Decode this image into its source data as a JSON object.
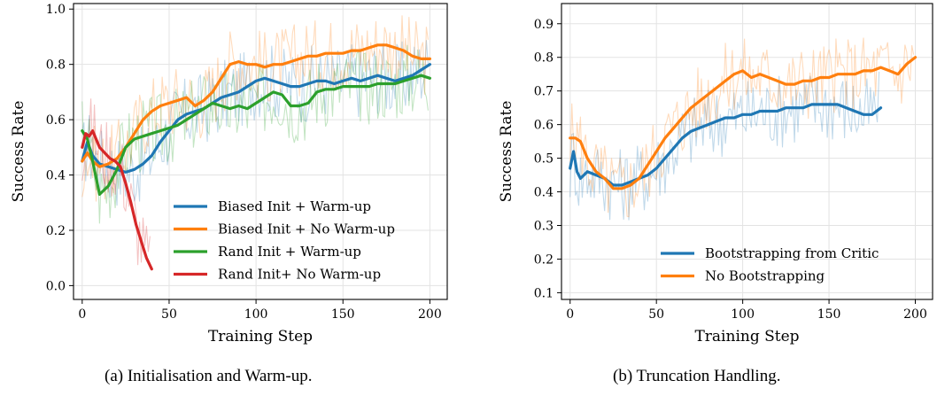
{
  "chart_data": [
    {
      "type": "line",
      "caption": "(a) Initialisation and Warm-up.",
      "xlabel": "Training Step",
      "ylabel": "Success Rate",
      "xlim": [
        -5,
        210
      ],
      "ylim": [
        -0.05,
        1.02
      ],
      "xticks": [
        "0",
        "50",
        "100",
        "150",
        "200"
      ],
      "yticks": [
        "0.0",
        "0.2",
        "0.4",
        "0.6",
        "0.8",
        "1.0"
      ],
      "grid": true,
      "legend_position": "lower-right",
      "series": [
        {
          "name": "Biased Init + Warm-up",
          "color": "#1f77b4",
          "x": [
            0,
            3,
            6,
            10,
            15,
            20,
            25,
            30,
            35,
            40,
            45,
            50,
            55,
            60,
            65,
            70,
            75,
            80,
            85,
            90,
            95,
            100,
            105,
            110,
            115,
            120,
            125,
            130,
            135,
            140,
            145,
            150,
            155,
            160,
            165,
            170,
            175,
            180,
            185,
            190,
            195,
            200
          ],
          "y": [
            0.45,
            0.52,
            0.47,
            0.44,
            0.43,
            0.42,
            0.41,
            0.42,
            0.44,
            0.47,
            0.52,
            0.56,
            0.6,
            0.62,
            0.63,
            0.64,
            0.66,
            0.68,
            0.69,
            0.7,
            0.72,
            0.74,
            0.75,
            0.74,
            0.73,
            0.72,
            0.72,
            0.73,
            0.74,
            0.74,
            0.73,
            0.74,
            0.75,
            0.74,
            0.75,
            0.76,
            0.75,
            0.74,
            0.75,
            0.76,
            0.78,
            0.8
          ]
        },
        {
          "name": "Biased Init + No Warm-up",
          "color": "#ff7f0e",
          "x": [
            0,
            3,
            6,
            10,
            15,
            20,
            25,
            30,
            35,
            40,
            45,
            50,
            55,
            60,
            65,
            70,
            75,
            80,
            85,
            90,
            95,
            100,
            105,
            110,
            115,
            120,
            125,
            130,
            135,
            140,
            145,
            150,
            155,
            160,
            165,
            170,
            175,
            180,
            185,
            190,
            195,
            200
          ],
          "y": [
            0.45,
            0.48,
            0.45,
            0.43,
            0.44,
            0.46,
            0.5,
            0.55,
            0.6,
            0.63,
            0.65,
            0.66,
            0.67,
            0.68,
            0.65,
            0.67,
            0.7,
            0.75,
            0.8,
            0.81,
            0.8,
            0.8,
            0.79,
            0.8,
            0.8,
            0.81,
            0.82,
            0.83,
            0.83,
            0.84,
            0.84,
            0.84,
            0.85,
            0.85,
            0.86,
            0.87,
            0.87,
            0.86,
            0.85,
            0.83,
            0.82,
            0.82
          ]
        },
        {
          "name": "Rand Init + Warm-up",
          "color": "#2ca02c",
          "x": [
            0,
            3,
            6,
            10,
            15,
            20,
            25,
            30,
            35,
            40,
            45,
            50,
            55,
            60,
            65,
            70,
            75,
            80,
            85,
            90,
            95,
            100,
            105,
            110,
            115,
            120,
            125,
            130,
            135,
            140,
            145,
            150,
            155,
            160,
            165,
            170,
            175,
            180,
            185,
            190,
            195,
            200
          ],
          "y": [
            0.56,
            0.53,
            0.45,
            0.33,
            0.36,
            0.42,
            0.5,
            0.53,
            0.54,
            0.55,
            0.56,
            0.57,
            0.58,
            0.6,
            0.62,
            0.64,
            0.66,
            0.65,
            0.64,
            0.65,
            0.64,
            0.66,
            0.68,
            0.7,
            0.69,
            0.65,
            0.65,
            0.66,
            0.7,
            0.71,
            0.71,
            0.72,
            0.72,
            0.72,
            0.72,
            0.73,
            0.73,
            0.73,
            0.74,
            0.75,
            0.76,
            0.75
          ]
        },
        {
          "name": "Rand Init+ No Warm-up",
          "color": "#d62728",
          "x": [
            0,
            2,
            4,
            6,
            8,
            10,
            13,
            16,
            19,
            22,
            25,
            28,
            31,
            34,
            37,
            40
          ],
          "y": [
            0.5,
            0.55,
            0.54,
            0.56,
            0.53,
            0.5,
            0.48,
            0.46,
            0.45,
            0.43,
            0.37,
            0.3,
            0.22,
            0.16,
            0.1,
            0.06
          ]
        }
      ]
    },
    {
      "type": "line",
      "caption": "(b) Truncation Handling.",
      "xlabel": "Training Step",
      "ylabel": "Success Rate",
      "xlim": [
        -5,
        210
      ],
      "ylim": [
        0.08,
        0.96
      ],
      "xticks": [
        "0",
        "50",
        "100",
        "150",
        "200"
      ],
      "yticks": [
        "0.1",
        "0.2",
        "0.3",
        "0.4",
        "0.5",
        "0.6",
        "0.7",
        "0.8",
        "0.9"
      ],
      "grid": true,
      "legend_position": "lower-right",
      "series": [
        {
          "name": "Bootstrapping from Critic",
          "color": "#1f77b4",
          "x": [
            0,
            2,
            4,
            6,
            8,
            10,
            15,
            20,
            25,
            30,
            35,
            40,
            45,
            50,
            55,
            60,
            65,
            70,
            75,
            80,
            85,
            90,
            95,
            100,
            105,
            110,
            115,
            120,
            125,
            130,
            135,
            140,
            145,
            150,
            155,
            160,
            165,
            170,
            175,
            180
          ],
          "y": [
            0.47,
            0.52,
            0.46,
            0.44,
            0.45,
            0.46,
            0.45,
            0.44,
            0.42,
            0.42,
            0.43,
            0.44,
            0.45,
            0.47,
            0.5,
            0.53,
            0.56,
            0.58,
            0.59,
            0.6,
            0.61,
            0.62,
            0.62,
            0.63,
            0.63,
            0.64,
            0.64,
            0.64,
            0.65,
            0.65,
            0.65,
            0.66,
            0.66,
            0.66,
            0.66,
            0.65,
            0.64,
            0.63,
            0.63,
            0.65
          ]
        },
        {
          "name": "No Bootstrapping",
          "color": "#ff7f0e",
          "x": [
            0,
            3,
            6,
            10,
            15,
            20,
            25,
            30,
            35,
            40,
            45,
            50,
            55,
            60,
            65,
            70,
            75,
            80,
            85,
            90,
            95,
            100,
            105,
            110,
            115,
            120,
            125,
            130,
            135,
            140,
            145,
            150,
            155,
            160,
            165,
            170,
            175,
            180,
            185,
            190,
            195,
            200
          ],
          "y": [
            0.56,
            0.56,
            0.55,
            0.5,
            0.46,
            0.44,
            0.41,
            0.41,
            0.42,
            0.44,
            0.48,
            0.52,
            0.56,
            0.59,
            0.62,
            0.65,
            0.67,
            0.69,
            0.71,
            0.73,
            0.75,
            0.76,
            0.74,
            0.75,
            0.74,
            0.73,
            0.72,
            0.72,
            0.73,
            0.73,
            0.74,
            0.74,
            0.75,
            0.75,
            0.75,
            0.76,
            0.76,
            0.77,
            0.76,
            0.75,
            0.78,
            0.8
          ]
        }
      ]
    }
  ]
}
